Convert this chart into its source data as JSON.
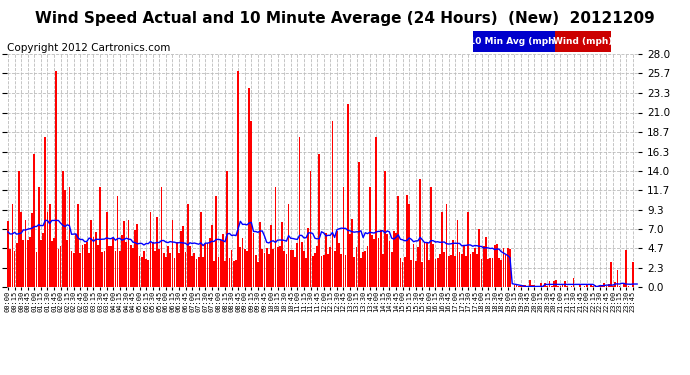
{
  "title": "Wind Speed Actual and 10 Minute Average (24 Hours)  (New)  20121209",
  "copyright": "Copyright 2012 Cartronics.com",
  "legend_labels": [
    "10 Min Avg (mph)",
    "Wind (mph)"
  ],
  "legend_colors_bg": [
    "#0000cc",
    "#cc0000"
  ],
  "legend_text_color": "#ffffff",
  "y_ticks": [
    0.0,
    2.3,
    4.7,
    7.0,
    9.3,
    11.7,
    14.0,
    16.3,
    18.7,
    21.0,
    23.3,
    25.7,
    28.0
  ],
  "y_min": 0.0,
  "y_max": 28.0,
  "background_color": "#ffffff",
  "plot_bg_color": "#ffffff",
  "grid_color": "#bbbbbb",
  "bar_color": "#ff0000",
  "avg_line_color": "#0000ff",
  "title_fontsize": 11,
  "copyright_fontsize": 7.5,
  "num_points": 288
}
